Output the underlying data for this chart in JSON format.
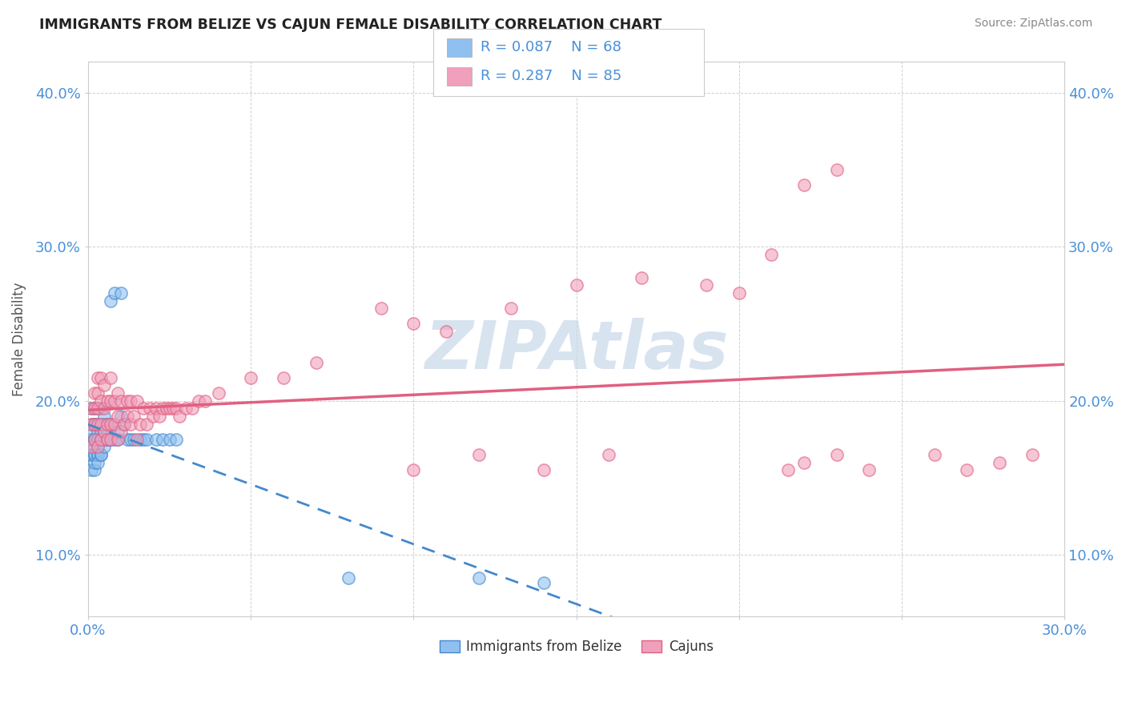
{
  "title": "IMMIGRANTS FROM BELIZE VS CAJUN FEMALE DISABILITY CORRELATION CHART",
  "source": "Source: ZipAtlas.com",
  "ylabel": "Female Disability",
  "xlim": [
    0.0,
    0.3
  ],
  "ylim": [
    0.06,
    0.42
  ],
  "xtick_vals": [
    0.0,
    0.05,
    0.1,
    0.15,
    0.2,
    0.25,
    0.3
  ],
  "xticklabels": [
    "0.0%",
    "",
    "",
    "",
    "",
    "",
    "30.0%"
  ],
  "ytick_vals": [
    0.1,
    0.2,
    0.3,
    0.4
  ],
  "yticklabels": [
    "10.0%",
    "20.0%",
    "30.0%",
    "40.0%"
  ],
  "belize_color": "#90c0f0",
  "cajun_color": "#f0a0bc",
  "belize_line_color": "#4488cc",
  "cajun_line_color": "#e06080",
  "legend_label_belize": "Immigrants from Belize",
  "legend_label_cajun": "Cajuns",
  "watermark": "ZIPAtlas",
  "watermark_color": "#c8d8ea",
  "tick_color": "#4a90d9",
  "belize_x": [
    0.001,
    0.001,
    0.001,
    0.001,
    0.001,
    0.001,
    0.001,
    0.001,
    0.001,
    0.002,
    0.002,
    0.002,
    0.002,
    0.002,
    0.002,
    0.002,
    0.002,
    0.002,
    0.002,
    0.003,
    0.003,
    0.003,
    0.003,
    0.003,
    0.003,
    0.003,
    0.003,
    0.003,
    0.003,
    0.004,
    0.004,
    0.004,
    0.004,
    0.004,
    0.004,
    0.004,
    0.005,
    0.005,
    0.005,
    0.005,
    0.005,
    0.006,
    0.006,
    0.006,
    0.006,
    0.007,
    0.007,
    0.007,
    0.008,
    0.008,
    0.009,
    0.009,
    0.01,
    0.01,
    0.011,
    0.012,
    0.013,
    0.014,
    0.016,
    0.017,
    0.018,
    0.021,
    0.023,
    0.025,
    0.027,
    0.08,
    0.12,
    0.14
  ],
  "belize_y": [
    0.155,
    0.165,
    0.175,
    0.185,
    0.195,
    0.175,
    0.165,
    0.175,
    0.18,
    0.155,
    0.165,
    0.175,
    0.185,
    0.17,
    0.195,
    0.16,
    0.175,
    0.165,
    0.185,
    0.17,
    0.18,
    0.175,
    0.195,
    0.165,
    0.175,
    0.185,
    0.165,
    0.16,
    0.175,
    0.18,
    0.175,
    0.185,
    0.195,
    0.165,
    0.175,
    0.165,
    0.18,
    0.19,
    0.175,
    0.185,
    0.17,
    0.175,
    0.18,
    0.185,
    0.175,
    0.265,
    0.185,
    0.175,
    0.27,
    0.175,
    0.175,
    0.18,
    0.27,
    0.19,
    0.185,
    0.175,
    0.175,
    0.175,
    0.175,
    0.175,
    0.175,
    0.175,
    0.175,
    0.175,
    0.175,
    0.085,
    0.085,
    0.082
  ],
  "cajun_x": [
    0.001,
    0.001,
    0.001,
    0.002,
    0.002,
    0.002,
    0.002,
    0.003,
    0.003,
    0.003,
    0.003,
    0.003,
    0.004,
    0.004,
    0.004,
    0.004,
    0.005,
    0.005,
    0.005,
    0.006,
    0.006,
    0.006,
    0.007,
    0.007,
    0.007,
    0.007,
    0.008,
    0.008,
    0.009,
    0.009,
    0.009,
    0.01,
    0.01,
    0.011,
    0.012,
    0.012,
    0.013,
    0.013,
    0.014,
    0.015,
    0.015,
    0.016,
    0.017,
    0.018,
    0.019,
    0.02,
    0.021,
    0.022,
    0.023,
    0.024,
    0.025,
    0.026,
    0.027,
    0.028,
    0.03,
    0.032,
    0.034,
    0.036,
    0.04,
    0.05,
    0.06,
    0.07,
    0.09,
    0.1,
    0.11,
    0.13,
    0.15,
    0.17,
    0.19,
    0.2,
    0.21,
    0.215,
    0.22,
    0.23,
    0.24,
    0.26,
    0.27,
    0.28,
    0.29,
    0.22,
    0.23,
    0.1,
    0.12,
    0.14,
    0.16
  ],
  "cajun_y": [
    0.17,
    0.185,
    0.195,
    0.175,
    0.185,
    0.195,
    0.205,
    0.17,
    0.185,
    0.195,
    0.205,
    0.215,
    0.175,
    0.185,
    0.2,
    0.215,
    0.18,
    0.195,
    0.21,
    0.175,
    0.185,
    0.2,
    0.175,
    0.185,
    0.2,
    0.215,
    0.185,
    0.2,
    0.175,
    0.19,
    0.205,
    0.18,
    0.2,
    0.185,
    0.19,
    0.2,
    0.185,
    0.2,
    0.19,
    0.175,
    0.2,
    0.185,
    0.195,
    0.185,
    0.195,
    0.19,
    0.195,
    0.19,
    0.195,
    0.195,
    0.195,
    0.195,
    0.195,
    0.19,
    0.195,
    0.195,
    0.2,
    0.2,
    0.205,
    0.215,
    0.215,
    0.225,
    0.26,
    0.25,
    0.245,
    0.26,
    0.275,
    0.28,
    0.275,
    0.27,
    0.295,
    0.155,
    0.16,
    0.165,
    0.155,
    0.165,
    0.155,
    0.16,
    0.165,
    0.34,
    0.35,
    0.155,
    0.165,
    0.155,
    0.165
  ],
  "belize_intercept": 0.168,
  "belize_slope": 0.08,
  "cajun_intercept": 0.165,
  "cajun_slope": 0.3
}
